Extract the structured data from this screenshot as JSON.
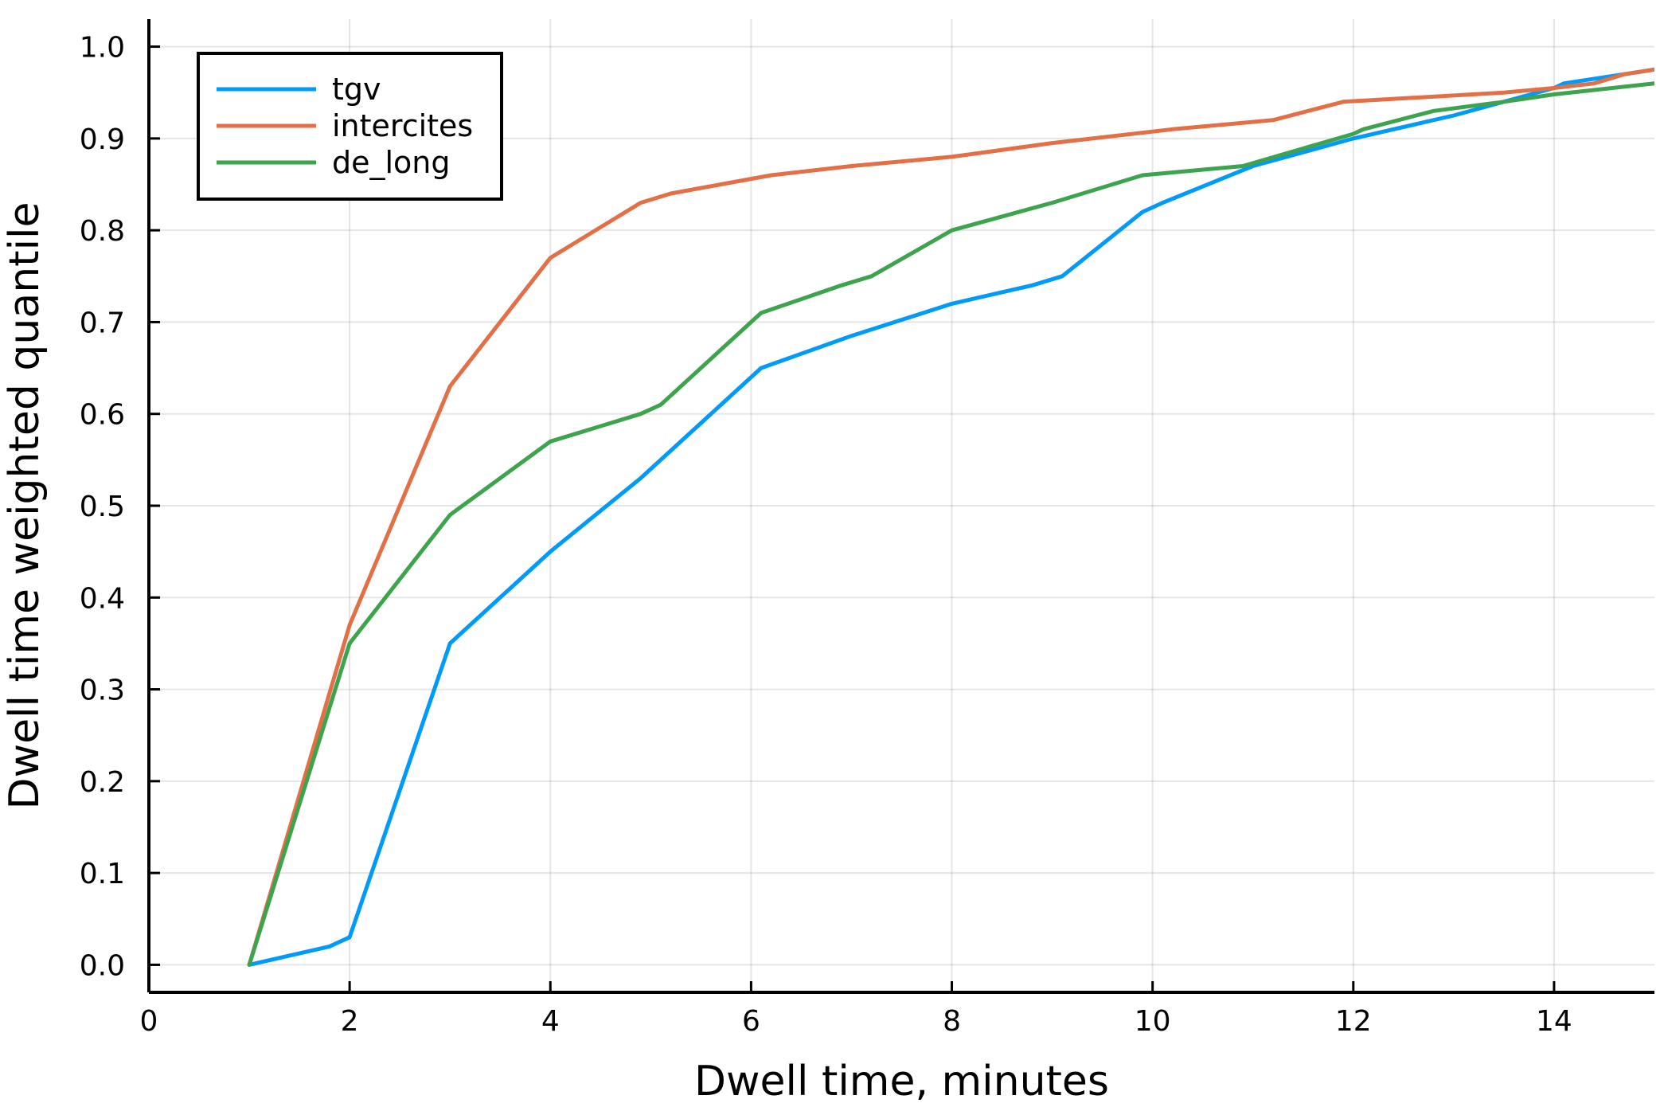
{
  "chart_data": {
    "type": "line",
    "title": "",
    "xlabel": "Dwell time, minutes",
    "ylabel": "Dwell time weighted quantile",
    "xlim": [
      0,
      15
    ],
    "ylim": [
      -0.03,
      1.03
    ],
    "x_ticks": [
      0,
      2,
      4,
      6,
      8,
      10,
      12,
      14
    ],
    "x_tick_labels": [
      "0",
      "2",
      "4",
      "6",
      "8",
      "10",
      "12",
      "14"
    ],
    "y_ticks": [
      0.0,
      0.1,
      0.2,
      0.3,
      0.4,
      0.5,
      0.6,
      0.7,
      0.8,
      0.9,
      1.0
    ],
    "y_tick_labels": [
      "0.0",
      "0.1",
      "0.2",
      "0.3",
      "0.4",
      "0.5",
      "0.6",
      "0.7",
      "0.8",
      "0.9",
      "1.0"
    ],
    "grid": true,
    "legend_position": "top-left",
    "series": [
      {
        "name": "tgv",
        "color": "#009af9",
        "points": [
          [
            1,
            0.0
          ],
          [
            1.8,
            0.02
          ],
          [
            2,
            0.03
          ],
          [
            3,
            0.35
          ],
          [
            4,
            0.45
          ],
          [
            4.9,
            0.53
          ],
          [
            5.1,
            0.55
          ],
          [
            6,
            0.64
          ],
          [
            6.1,
            0.65
          ],
          [
            7,
            0.685
          ],
          [
            8,
            0.72
          ],
          [
            8.4,
            0.73
          ],
          [
            8.8,
            0.74
          ],
          [
            9.1,
            0.75
          ],
          [
            9.9,
            0.82
          ],
          [
            10.1,
            0.83
          ],
          [
            11,
            0.87
          ],
          [
            12,
            0.9
          ],
          [
            13,
            0.925
          ],
          [
            14,
            0.955
          ],
          [
            14.1,
            0.96
          ],
          [
            15,
            0.975
          ]
        ]
      },
      {
        "name": "intercites",
        "color": "#e26f46",
        "points": [
          [
            1,
            0.0
          ],
          [
            2,
            0.37
          ],
          [
            3,
            0.63
          ],
          [
            4,
            0.77
          ],
          [
            4.9,
            0.83
          ],
          [
            5.2,
            0.84
          ],
          [
            5.7,
            0.85
          ],
          [
            6.2,
            0.86
          ],
          [
            7,
            0.87
          ],
          [
            8,
            0.88
          ],
          [
            9,
            0.895
          ],
          [
            10.2,
            0.91
          ],
          [
            11.2,
            0.92
          ],
          [
            11.9,
            0.94
          ],
          [
            13.5,
            0.95
          ],
          [
            14,
            0.955
          ],
          [
            14.4,
            0.96
          ],
          [
            14.7,
            0.97
          ],
          [
            15,
            0.975
          ]
        ]
      },
      {
        "name": "de_long",
        "color": "#3da44d",
        "points": [
          [
            1,
            0.0
          ],
          [
            2,
            0.35
          ],
          [
            3,
            0.49
          ],
          [
            4,
            0.57
          ],
          [
            4.3,
            0.58
          ],
          [
            4.9,
            0.6
          ],
          [
            5.1,
            0.61
          ],
          [
            6,
            0.7
          ],
          [
            6.1,
            0.71
          ],
          [
            6.9,
            0.74
          ],
          [
            7.2,
            0.75
          ],
          [
            8,
            0.8
          ],
          [
            9,
            0.83
          ],
          [
            9.9,
            0.86
          ],
          [
            10.9,
            0.87
          ],
          [
            12,
            0.905
          ],
          [
            12.1,
            0.91
          ],
          [
            12.8,
            0.93
          ],
          [
            13.5,
            0.94
          ],
          [
            14,
            0.948
          ],
          [
            15,
            0.96
          ]
        ]
      }
    ]
  }
}
